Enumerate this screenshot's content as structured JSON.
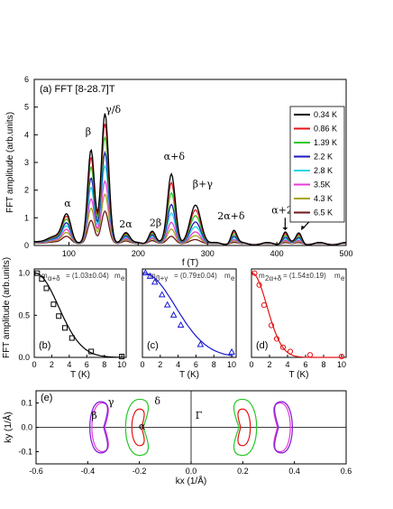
{
  "chart_data": [
    {
      "panel": "a",
      "type": "line",
      "title": "(a) FFT [8-28.7]T",
      "xlabel": "f (T)",
      "ylabel": "FFT amplitude (arb.units)",
      "xlim": [
        50,
        500
      ],
      "ylim": [
        0,
        6
      ],
      "xticks": [
        100,
        200,
        300,
        400,
        500
      ],
      "yticks": [
        0,
        1,
        2,
        3,
        4,
        5,
        6
      ],
      "legend_position": "top-right",
      "series": [
        {
          "name": "0.34 K",
          "color": "#000000",
          "scale": 1.0
        },
        {
          "name": "0.86 K",
          "color": "#e4141b",
          "scale": 0.92
        },
        {
          "name": "1.39 K",
          "color": "#26c826",
          "scale": 0.82
        },
        {
          "name": "2.2 K",
          "color": "#1a1ab8",
          "scale": 0.7
        },
        {
          "name": "2.8 K",
          "color": "#22d7e7",
          "scale": 0.6
        },
        {
          "name": "3.5K",
          "color": "#e83ad6",
          "scale": 0.48
        },
        {
          "name": "4.3 K",
          "color": "#a5a51b",
          "scale": 0.38
        },
        {
          "name": "6.5 K",
          "color": "#6b1818",
          "scale": 0.25
        }
      ],
      "base_peaks": [
        {
          "f": 75,
          "amp": 0.25,
          "w": 18
        },
        {
          "f": 97,
          "amp": 1.05,
          "w": 9
        },
        {
          "f": 132,
          "amp": 3.4,
          "w": 7
        },
        {
          "f": 152,
          "amp": 4.7,
          "w": 7.5
        },
        {
          "f": 182,
          "amp": 0.45,
          "w": 8
        },
        {
          "f": 220,
          "amp": 0.5,
          "w": 7
        },
        {
          "f": 248,
          "amp": 2.55,
          "w": 8
        },
        {
          "f": 283,
          "amp": 1.4,
          "w": 11
        },
        {
          "f": 338,
          "amp": 0.5,
          "w": 6
        },
        {
          "f": 412,
          "amp": 0.45,
          "w": 6
        },
        {
          "f": 432,
          "amp": 0.38,
          "w": 6
        }
      ],
      "annotations": [
        {
          "text": "α",
          "f": 98,
          "y": 1.4
        },
        {
          "text": "β",
          "f": 128,
          "y": 4.0
        },
        {
          "text": "γ/δ",
          "f": 164,
          "y": 4.8
        },
        {
          "text": "2α",
          "f": 182,
          "y": 0.65
        },
        {
          "text": "2β",
          "f": 225,
          "y": 0.7
        },
        {
          "text": "α+δ",
          "f": 252,
          "y": 3.1
        },
        {
          "text": "β+γ",
          "f": 293,
          "y": 2.1
        },
        {
          "text": "2α+δ",
          "f": 334,
          "y": 0.95
        },
        {
          "text": "α+2δ",
          "f": 412,
          "y": 1.15
        },
        {
          "text": "3α+δ",
          "f": 460,
          "y": 1.15
        }
      ]
    },
    {
      "panel": "b",
      "type": "scatter",
      "title": "(b)",
      "mass_label": "= (1.03±0.04)",
      "mass_sub": "α+δ",
      "color": "#000000",
      "marker": "square",
      "xlabel": "T (K)",
      "ylabel": "FFT amplitude (arb.units)",
      "xlim": [
        0,
        10.5
      ],
      "ylim": [
        0,
        1.05
      ],
      "xticks": [
        0,
        2,
        4,
        6,
        8,
        10
      ],
      "yticks": [
        0.0,
        0.5,
        1.0
      ],
      "points": [
        [
          0.34,
          1.0
        ],
        [
          0.86,
          0.93
        ],
        [
          1.39,
          0.82
        ],
        [
          2.2,
          0.63
        ],
        [
          2.8,
          0.49
        ],
        [
          3.5,
          0.35
        ],
        [
          4.3,
          0.23
        ],
        [
          6.5,
          0.07
        ],
        [
          10,
          0.01
        ]
      ],
      "fit_decay": 0.28
    },
    {
      "panel": "c",
      "type": "scatter",
      "title": "(c)",
      "mass_label": "= (0.79±0.04)",
      "mass_sub": "β+γ",
      "color": "#1a1ad0",
      "marker": "triangle",
      "xlabel": "T (K)",
      "xlim": [
        0,
        10.5
      ],
      "ylim": [
        0,
        1.05
      ],
      "xticks": [
        0,
        2,
        4,
        6,
        8,
        10
      ],
      "points": [
        [
          0.34,
          1.0
        ],
        [
          0.86,
          0.96
        ],
        [
          1.39,
          0.89
        ],
        [
          2.2,
          0.74
        ],
        [
          2.8,
          0.62
        ],
        [
          3.5,
          0.5
        ],
        [
          4.3,
          0.38
        ],
        [
          6.5,
          0.15
        ],
        [
          10,
          0.06
        ]
      ],
      "fit_decay": 0.21
    },
    {
      "panel": "d",
      "type": "scatter",
      "title": "(d)",
      "mass_label": "= (1.54±0.19)",
      "mass_sub": "2α+δ",
      "color": "#e41414",
      "marker": "circle",
      "xlabel": "T (K)",
      "xlim": [
        0,
        10.5
      ],
      "ylim": [
        0,
        1.05
      ],
      "xticks": [
        0,
        2,
        4,
        6,
        8,
        10
      ],
      "points": [
        [
          0.34,
          1.0
        ],
        [
          0.86,
          0.86
        ],
        [
          1.39,
          0.62
        ],
        [
          2.2,
          0.38
        ],
        [
          2.8,
          0.22
        ],
        [
          3.5,
          0.12
        ],
        [
          4.3,
          0.07
        ],
        [
          6.5,
          0.03
        ],
        [
          10,
          0.01
        ]
      ],
      "fit_decay": 0.45
    },
    {
      "panel": "e",
      "type": "diagram",
      "title": "(e)",
      "xlabel": "kx (1/Å)",
      "ylabel": "ky (1/Å)",
      "xlim": [
        -0.6,
        0.6
      ],
      "ylim": [
        -0.15,
        0.15
      ],
      "xticks": [
        -0.6,
        -0.4,
        -0.2,
        0.0,
        0.2,
        0.4,
        0.6
      ],
      "yticks": [
        -0.1,
        0.0,
        0.1
      ],
      "labels": [
        "β",
        "γ",
        "α",
        "δ",
        "Γ"
      ],
      "pockets": [
        {
          "name": "α",
          "color": "#e41414",
          "cx": 0.2,
          "rx": 0.03,
          "ry": 0.075
        },
        {
          "name": "δ",
          "color": "#26c826",
          "cx": 0.2,
          "rx": 0.055,
          "ry": 0.115
        },
        {
          "name": "β",
          "color": "#e83ad6",
          "cx": 0.345,
          "rx": 0.04,
          "ry": 0.1
        },
        {
          "name": "γ",
          "color": "#7a1ad8",
          "cx": 0.35,
          "rx": 0.043,
          "ry": 0.105
        }
      ]
    }
  ],
  "mass_symbol": "m",
  "mass_unit": "m",
  "mass_unit_sub": "e"
}
